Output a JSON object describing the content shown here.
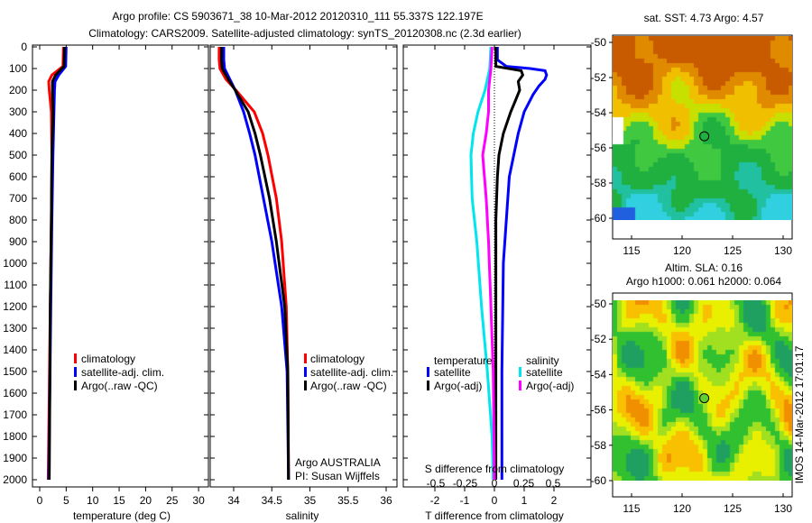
{
  "title_line1": "Argo profile: CS 5903671_38 10-Mar-2012 20120310_111 55.337S 122.197E",
  "title_line2": "Climatology: CARS2009. Satellite-adjusted climatology: synTS_20120308.nc (2.3d earlier)",
  "colors": {
    "climatology": "#ff0000",
    "satellite": "#0000ff",
    "argo": "#000000",
    "sal_satellite": "#00e5ee",
    "sal_argo": "#ff00ff"
  },
  "chart_data": [
    {
      "type": "line",
      "xlabel": "temperature (deg C)",
      "ylabel": "depth",
      "xlim": [
        -1,
        31.5
      ],
      "ylim": [
        2070,
        0
      ],
      "xticks": [
        0,
        5,
        10,
        15,
        20,
        25,
        30
      ],
      "yticks": [
        0,
        100,
        200,
        300,
        400,
        500,
        600,
        700,
        800,
        900,
        1000,
        1100,
        1200,
        1300,
        1400,
        1500,
        1600,
        1700,
        1800,
        1900,
        2000
      ],
      "legend": [
        "climatology",
        "satellite-adj. clim.",
        "Argo(..raw -QC)"
      ],
      "series": [
        {
          "name": "climatology",
          "color": "#ff0000",
          "depth": [
            0,
            90,
            130,
            160,
            200,
            300,
            500,
            800,
            1200,
            1600,
            2000
          ],
          "values": [
            4.5,
            4.4,
            2.3,
            1.7,
            1.8,
            2.2,
            2.3,
            2.2,
            2.0,
            1.8,
            1.6
          ]
        },
        {
          "name": "satellite-adj. clim.",
          "color": "#0000ff",
          "depth": [
            0,
            90,
            130,
            160,
            200,
            300,
            500,
            800,
            1200,
            1600,
            2000
          ],
          "values": [
            5.0,
            4.9,
            3.6,
            2.9,
            2.8,
            2.7,
            2.5,
            2.3,
            2.1,
            1.9,
            1.7
          ]
        },
        {
          "name": "Argo(..raw -QC)",
          "color": "#000000",
          "depth": [
            0,
            90,
            130,
            160,
            200,
            300,
            500,
            800,
            1200,
            1600,
            2000
          ],
          "values": [
            4.7,
            4.6,
            3.0,
            2.4,
            2.4,
            2.5,
            2.3,
            2.2,
            2.0,
            1.9,
            1.8
          ]
        }
      ]
    },
    {
      "type": "line",
      "xlabel": "salinity",
      "xlim": [
        33.7,
        36.15
      ],
      "ylim": [
        2070,
        0
      ],
      "xticks": [
        34,
        34.5,
        35,
        35.5,
        36
      ],
      "xticklabels": [
        "34",
        "34.5",
        "35",
        "35.5",
        "36"
      ],
      "legend": [
        "climatology",
        "satellite-adj. clim.",
        "Argo(..raw -QC)"
      ],
      "annotation": [
        "Argo AUSTRALIA",
        "PI: Susan Wijffels"
      ],
      "series": [
        {
          "name": "climatology",
          "color": "#ff0000",
          "depth": [
            0,
            60,
            100,
            150,
            200,
            300,
            400,
            500,
            700,
            900,
            1200,
            1500,
            2000
          ],
          "values": [
            33.81,
            33.81,
            33.82,
            33.9,
            34.03,
            34.27,
            34.38,
            34.45,
            34.56,
            34.63,
            34.69,
            34.71,
            34.72
          ]
        },
        {
          "name": "satellite-adj. clim.",
          "color": "#0000ff",
          "depth": [
            0,
            60,
            100,
            150,
            200,
            300,
            400,
            500,
            700,
            900,
            1200,
            1500,
            2000
          ],
          "values": [
            33.87,
            33.87,
            33.88,
            33.95,
            34.02,
            34.13,
            34.21,
            34.28,
            34.39,
            34.5,
            34.63,
            34.7,
            34.72
          ]
        },
        {
          "name": "Argo(..raw -QC)",
          "color": "#000000",
          "depth": [
            0,
            60,
            100,
            150,
            200,
            300,
            400,
            500,
            700,
            900,
            1200,
            1500,
            2000
          ],
          "values": [
            33.84,
            33.84,
            33.85,
            33.93,
            34.02,
            34.19,
            34.28,
            34.35,
            34.47,
            34.56,
            34.67,
            34.71,
            34.72
          ]
        }
      ]
    },
    {
      "type": "line",
      "xlabel": "T difference from climatology",
      "xlim": [
        -3.2,
        3.2
      ],
      "ylim": [
        2070,
        0
      ],
      "xticks": [
        -2,
        -1,
        0,
        1,
        2
      ],
      "s_axis_label": "S difference from climatology",
      "s_ticks": [
        -0.5,
        -0.25,
        0,
        0.25,
        0.5
      ],
      "s_ticklabels": [
        "-0.5",
        "-0.25",
        "0",
        "0.25",
        "0.5"
      ],
      "legend_temperature": {
        "heading": "temperature",
        "items": [
          "satellite",
          "Argo(-adj)"
        ]
      },
      "legend_salinity": {
        "heading": "salinity",
        "items": [
          "satellite",
          "Argo(-adj)"
        ]
      },
      "series": [
        {
          "name": "T satellite",
          "axis": "T",
          "color": "#0000ff",
          "depth": [
            0,
            60,
            90,
            100,
            110,
            130,
            150,
            180,
            220,
            300,
            400,
            600,
            800,
            1000,
            1500,
            2000
          ],
          "values": [
            0.1,
            0.1,
            0.4,
            1.2,
            1.7,
            1.75,
            1.7,
            1.5,
            1.3,
            1.0,
            0.8,
            0.5,
            0.4,
            0.3,
            0.25,
            0.25
          ]
        },
        {
          "name": "T Argo(-adj)",
          "axis": "T",
          "color": "#000000",
          "depth": [
            0,
            90,
            110,
            130,
            160,
            200,
            250,
            300,
            400,
            500,
            600,
            800,
            1000,
            1500,
            2000
          ],
          "values": [
            0.05,
            0.05,
            0.9,
            0.95,
            0.8,
            0.85,
            0.7,
            0.55,
            0.3,
            0.15,
            0.1,
            0.05,
            0.05,
            0.05,
            0.05
          ]
        },
        {
          "name": "S satellite",
          "axis": "S",
          "color": "#00e5ee",
          "depth": [
            0,
            100,
            200,
            300,
            400,
            500,
            700,
            900,
            1200,
            1500,
            1800,
            2000
          ],
          "values": [
            -0.03,
            -0.04,
            -0.08,
            -0.14,
            -0.18,
            -0.2,
            -0.19,
            -0.15,
            -0.11,
            -0.06,
            -0.02,
            -0.01
          ]
        },
        {
          "name": "S Argo(-adj)",
          "axis": "S",
          "color": "#ff00ff",
          "depth": [
            0,
            100,
            200,
            300,
            400,
            500,
            700,
            900,
            1200,
            1500,
            2000
          ],
          "values": [
            -0.02,
            -0.03,
            -0.05,
            -0.05,
            -0.07,
            -0.1,
            -0.07,
            -0.05,
            -0.03,
            -0.01,
            0.0
          ]
        }
      ]
    },
    {
      "type": "heatmap",
      "title": "sat. SST: 4.73 Argo: 4.57",
      "xticks": [
        115,
        120,
        125,
        130
      ],
      "yticks": [
        -50,
        -52,
        -54,
        -56,
        -58,
        -60
      ],
      "xlim": [
        113.2,
        131.0
      ],
      "ylim": [
        -61.1,
        -49.6
      ],
      "argo_position": [
        122.197,
        -55.337
      ]
    },
    {
      "type": "heatmap",
      "title": [
        "Altim. SLA: 0.16",
        "Argo h1000: 0.061 h2000: 0.064"
      ],
      "xticks": [
        115,
        120,
        125,
        130
      ],
      "yticks": [
        -50,
        -52,
        -54,
        -56,
        -58,
        -60
      ],
      "xlim": [
        113.2,
        131.0
      ],
      "ylim": [
        -61.1,
        -49.6
      ],
      "argo_position": [
        122.197,
        -55.337
      ]
    }
  ],
  "footer_stamp": "IMOS 14-Mar-2012 17:01:17"
}
